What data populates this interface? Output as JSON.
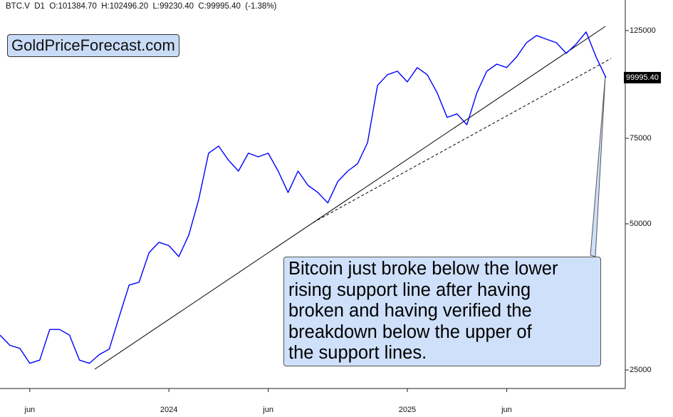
{
  "chart_data": {
    "type": "line",
    "header": "BTC.V  D1  O:101384.70  H:102496.20  L:99230.40  C:99995.40  (-1.38%)",
    "watermark_box": "GoldPriceForecast.com",
    "annotation": [
      "Bitcoin just broke below the lower",
      "rising support line after having",
      "broken and having verified the",
      "breakdown below the upper of",
      "the support lines."
    ],
    "categories": [
      null,
      null,
      null,
      "jun",
      null,
      null,
      null,
      null,
      null,
      null,
      null,
      null,
      null,
      null,
      null,
      null,
      null,
      "2024",
      null,
      null,
      null,
      null,
      null,
      null,
      null,
      null,
      null,
      "jun",
      null,
      null,
      null,
      null,
      null,
      null,
      null,
      null,
      null,
      null,
      null,
      null,
      null,
      "2025",
      null,
      null,
      null,
      null,
      null,
      null,
      null,
      null,
      null,
      "jun",
      null,
      null,
      null,
      null,
      null,
      null,
      null,
      null,
      null,
      null
    ],
    "series": [
      {
        "name": "BTC.V",
        "color": "#0000ff",
        "values": [
          29500,
          28100,
          27700,
          25800,
          26200,
          30300,
          30300,
          29500,
          26200,
          25800,
          26900,
          27600,
          32200,
          37400,
          37900,
          43600,
          45800,
          45100,
          42800,
          47400,
          56100,
          69900,
          72300,
          67600,
          64200,
          69900,
          68700,
          69900,
          64200,
          58000,
          64200,
          60000,
          58000,
          55200,
          61100,
          64200,
          66500,
          73500,
          96400,
          101400,
          103100,
          98000,
          104900,
          101400,
          93100,
          82800,
          84200,
          80000,
          93100,
          103100,
          106600,
          104900,
          110300,
          118000,
          122100,
          120000,
          118000,
          112200,
          117300,
          124200,
          110300,
          99995.4
        ]
      }
    ],
    "last_price": {
      "value": 99995.4,
      "label": "99995.40"
    },
    "log_scale": true,
    "ylim": [
      22900,
      144500
    ],
    "yticks": [
      25000,
      50000,
      75000,
      125000
    ]
  }
}
